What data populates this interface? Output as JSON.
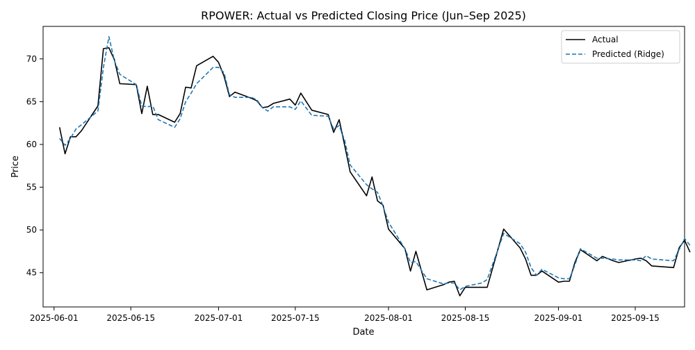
{
  "chart_data": {
    "type": "line",
    "title": "RPOWER: Actual vs Predicted Closing Price (Jun–Sep 2025)",
    "xlabel": "Date",
    "ylabel": "Price",
    "x_ticks": [
      "2025-06-01",
      "2025-06-15",
      "2025-07-01",
      "2025-07-15",
      "2025-08-01",
      "2025-08-15",
      "2025-09-01",
      "2025-09-15"
    ],
    "y_ticks": [
      45,
      50,
      55,
      60,
      65,
      70
    ],
    "xlim": [
      "2025-05-30",
      "2025-09-24"
    ],
    "ylim": [
      41.0,
      73.8
    ],
    "grid": false,
    "legend_position": "top-right",
    "series": [
      {
        "name": "Actual",
        "color": "#000000",
        "style": "solid",
        "points": [
          [
            "2025-06-02",
            62.0
          ],
          [
            "2025-06-03",
            58.9
          ],
          [
            "2025-06-04",
            60.9
          ],
          [
            "2025-06-05",
            60.9
          ],
          [
            "2025-06-06",
            61.6
          ],
          [
            "2025-06-09",
            64.5
          ],
          [
            "2025-06-10",
            71.2
          ],
          [
            "2025-06-11",
            71.3
          ],
          [
            "2025-06-12",
            69.9
          ],
          [
            "2025-06-13",
            67.1
          ],
          [
            "2025-06-16",
            67.0
          ],
          [
            "2025-06-17",
            63.6
          ],
          [
            "2025-06-18",
            66.8
          ],
          [
            "2025-06-19",
            63.5
          ],
          [
            "2025-06-20",
            63.5
          ],
          [
            "2025-06-23",
            62.6
          ],
          [
            "2025-06-24",
            63.6
          ],
          [
            "2025-06-25",
            66.7
          ],
          [
            "2025-06-26",
            66.6
          ],
          [
            "2025-06-27",
            69.2
          ],
          [
            "2025-06-30",
            70.3
          ],
          [
            "2025-07-01",
            69.6
          ],
          [
            "2025-07-02",
            68.0
          ],
          [
            "2025-07-03",
            65.6
          ],
          [
            "2025-07-04",
            66.1
          ],
          [
            "2025-07-07",
            65.4
          ],
          [
            "2025-07-08",
            65.1
          ],
          [
            "2025-07-09",
            64.3
          ],
          [
            "2025-07-10",
            64.4
          ],
          [
            "2025-07-11",
            64.8
          ],
          [
            "2025-07-14",
            65.3
          ],
          [
            "2025-07-15",
            64.6
          ],
          [
            "2025-07-16",
            66.0
          ],
          [
            "2025-07-18",
            64.0
          ],
          [
            "2025-07-21",
            63.5
          ],
          [
            "2025-07-22",
            61.4
          ],
          [
            "2025-07-23",
            62.9
          ],
          [
            "2025-07-24",
            59.9
          ],
          [
            "2025-07-25",
            56.8
          ],
          [
            "2025-07-28",
            54.0
          ],
          [
            "2025-07-29",
            56.2
          ],
          [
            "2025-07-30",
            53.4
          ],
          [
            "2025-07-31",
            52.9
          ],
          [
            "2025-08-01",
            50.1
          ],
          [
            "2025-08-04",
            47.8
          ],
          [
            "2025-08-05",
            45.2
          ],
          [
            "2025-08-06",
            47.5
          ],
          [
            "2025-08-08",
            43.0
          ],
          [
            "2025-08-11",
            43.6
          ],
          [
            "2025-08-12",
            43.9
          ],
          [
            "2025-08-13",
            44.0
          ],
          [
            "2025-08-14",
            42.3
          ],
          [
            "2025-08-15",
            43.3
          ],
          [
            "2025-08-18",
            43.3
          ],
          [
            "2025-08-19",
            43.3
          ],
          [
            "2025-08-22",
            50.1
          ],
          [
            "2025-08-25",
            47.9
          ],
          [
            "2025-08-26",
            46.6
          ],
          [
            "2025-08-27",
            44.7
          ],
          [
            "2025-08-28",
            44.7
          ],
          [
            "2025-08-29",
            45.2
          ],
          [
            "2025-09-01",
            43.9
          ],
          [
            "2025-09-02",
            44.0
          ],
          [
            "2025-09-03",
            44.0
          ],
          [
            "2025-09-04",
            46.2
          ],
          [
            "2025-09-05",
            47.7
          ],
          [
            "2025-09-08",
            46.4
          ],
          [
            "2025-09-09",
            46.9
          ],
          [
            "2025-09-11",
            46.4
          ],
          [
            "2025-09-12",
            46.2
          ],
          [
            "2025-09-15",
            46.6
          ],
          [
            "2025-09-16",
            46.7
          ],
          [
            "2025-09-17",
            46.4
          ],
          [
            "2025-09-18",
            45.8
          ],
          [
            "2025-09-22",
            45.6
          ],
          [
            "2025-09-23",
            47.9
          ],
          [
            "2025-09-24",
            48.8
          ],
          [
            "2025-09-25",
            47.4
          ]
        ]
      },
      {
        "name": "Predicted (Ridge)",
        "color": "#1f77b4",
        "style": "dashed",
        "points": [
          [
            "2025-06-02",
            60.7
          ],
          [
            "2025-06-03",
            59.9
          ],
          [
            "2025-06-04",
            60.7
          ],
          [
            "2025-06-05",
            61.8
          ],
          [
            "2025-06-06",
            62.3
          ],
          [
            "2025-06-09",
            63.9
          ],
          [
            "2025-06-10",
            69.0
          ],
          [
            "2025-06-11",
            72.6
          ],
          [
            "2025-06-12",
            69.8
          ],
          [
            "2025-06-13",
            68.2
          ],
          [
            "2025-06-16",
            67.0
          ],
          [
            "2025-06-17",
            64.5
          ],
          [
            "2025-06-18",
            64.4
          ],
          [
            "2025-06-19",
            64.5
          ],
          [
            "2025-06-20",
            62.9
          ],
          [
            "2025-06-23",
            62.0
          ],
          [
            "2025-06-24",
            63.0
          ],
          [
            "2025-06-25",
            65.0
          ],
          [
            "2025-06-26",
            66.0
          ],
          [
            "2025-06-27",
            67.1
          ],
          [
            "2025-06-30",
            69.0
          ],
          [
            "2025-07-01",
            69.0
          ],
          [
            "2025-07-02",
            68.4
          ],
          [
            "2025-07-03",
            65.8
          ],
          [
            "2025-07-04",
            65.5
          ],
          [
            "2025-07-07",
            65.5
          ],
          [
            "2025-07-08",
            65.2
          ],
          [
            "2025-07-09",
            64.3
          ],
          [
            "2025-07-10",
            63.9
          ],
          [
            "2025-07-11",
            64.4
          ],
          [
            "2025-07-14",
            64.4
          ],
          [
            "2025-07-15",
            64.1
          ],
          [
            "2025-07-16",
            65.1
          ],
          [
            "2025-07-18",
            63.4
          ],
          [
            "2025-07-21",
            63.3
          ],
          [
            "2025-07-22",
            61.8
          ],
          [
            "2025-07-23",
            62.2
          ],
          [
            "2025-07-24",
            60.5
          ],
          [
            "2025-07-25",
            57.6
          ],
          [
            "2025-07-28",
            55.3
          ],
          [
            "2025-07-29",
            54.8
          ],
          [
            "2025-07-30",
            54.4
          ],
          [
            "2025-07-31",
            52.8
          ],
          [
            "2025-08-01",
            50.9
          ],
          [
            "2025-08-04",
            47.8
          ],
          [
            "2025-08-05",
            46.2
          ],
          [
            "2025-08-06",
            46.3
          ],
          [
            "2025-08-08",
            44.3
          ],
          [
            "2025-08-11",
            43.7
          ],
          [
            "2025-08-12",
            43.8
          ],
          [
            "2025-08-13",
            43.8
          ],
          [
            "2025-08-14",
            43.0
          ],
          [
            "2025-08-15",
            43.4
          ],
          [
            "2025-08-18",
            43.8
          ],
          [
            "2025-08-19",
            44.2
          ],
          [
            "2025-08-22",
            49.6
          ],
          [
            "2025-08-25",
            48.4
          ],
          [
            "2025-08-26",
            47.4
          ],
          [
            "2025-08-27",
            45.6
          ],
          [
            "2025-08-28",
            44.7
          ],
          [
            "2025-08-29",
            45.4
          ],
          [
            "2025-09-01",
            44.4
          ],
          [
            "2025-09-02",
            44.3
          ],
          [
            "2025-09-03",
            44.3
          ],
          [
            "2025-09-04",
            45.9
          ],
          [
            "2025-09-05",
            47.8
          ],
          [
            "2025-09-08",
            46.7
          ],
          [
            "2025-09-09",
            46.7
          ],
          [
            "2025-09-11",
            46.6
          ],
          [
            "2025-09-12",
            46.5
          ],
          [
            "2025-09-15",
            46.5
          ],
          [
            "2025-09-16",
            46.4
          ],
          [
            "2025-09-17",
            47.0
          ],
          [
            "2025-09-18",
            46.6
          ],
          [
            "2025-09-22",
            46.4
          ],
          [
            "2025-09-23",
            47.7
          ],
          [
            "2025-09-24",
            49.0
          ],
          [
            "2025-09-25",
            48.2
          ]
        ]
      }
    ]
  }
}
